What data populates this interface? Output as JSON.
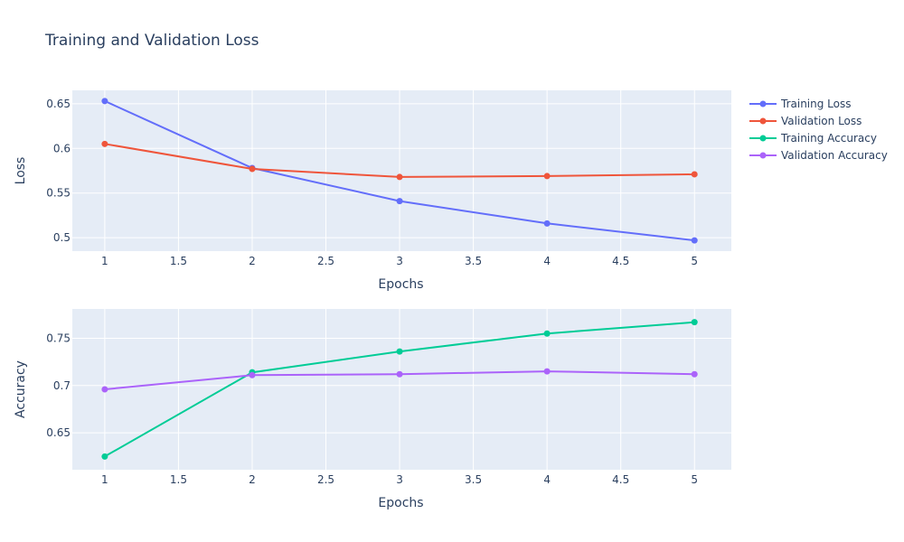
{
  "chart_data": {
    "type": "line",
    "title": "Training and Validation Loss",
    "x": [
      1,
      2,
      3,
      4,
      5
    ],
    "x_ticks": [
      "1",
      "1.5",
      "2",
      "2.5",
      "3",
      "3.5",
      "4",
      "4.5",
      "5"
    ],
    "x_tick_values": [
      1,
      1.5,
      2,
      2.5,
      3,
      3.5,
      4,
      4.5,
      5
    ],
    "legend_position": "top-right",
    "grid": true,
    "subplots": [
      {
        "xlabel": "Epochs",
        "ylabel": "Loss",
        "xlim": [
          0.78,
          5.25
        ],
        "ylim": [
          0.485,
          0.665
        ],
        "y_ticks": [
          "0.5",
          "0.55",
          "0.6",
          "0.65"
        ],
        "y_tick_values": [
          0.5,
          0.55,
          0.6,
          0.65
        ],
        "series": [
          {
            "name": "Training Loss",
            "color": "#636efa",
            "values": [
              0.653,
              0.578,
              0.541,
              0.516,
              0.497
            ]
          },
          {
            "name": "Validation Loss",
            "color": "#ef553b",
            "values": [
              0.605,
              0.577,
              0.568,
              0.569,
              0.571
            ]
          }
        ]
      },
      {
        "xlabel": "Epochs",
        "ylabel": "Accuracy",
        "xlim": [
          0.78,
          5.25
        ],
        "ylim": [
          0.611,
          0.781
        ],
        "y_ticks": [
          "0.65",
          "0.7",
          "0.75"
        ],
        "y_tick_values": [
          0.65,
          0.7,
          0.75
        ],
        "series": [
          {
            "name": "Training Accuracy",
            "color": "#00cc96",
            "values": [
              0.625,
              0.714,
              0.736,
              0.755,
              0.767
            ]
          },
          {
            "name": "Validation Accuracy",
            "color": "#ab63fa",
            "values": [
              0.696,
              0.711,
              0.712,
              0.715,
              0.712
            ]
          }
        ]
      }
    ]
  }
}
